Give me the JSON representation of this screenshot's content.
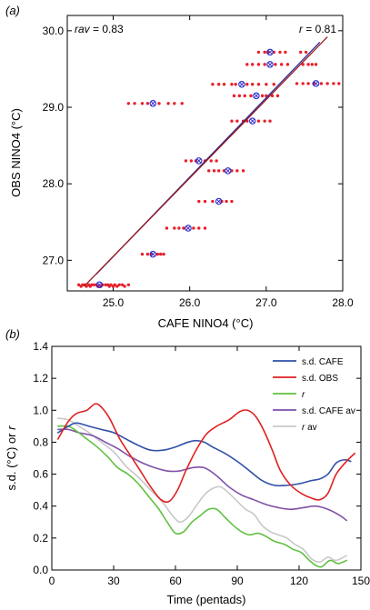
{
  "chart_data": [
    {
      "type": "scatter",
      "panel_label": "(a)",
      "xlabel": "CAFE NINO4 (°C)",
      "ylabel": "OBS NINO4 (°C)",
      "xlim": [
        24.4,
        28.0
      ],
      "ylim": [
        26.6,
        30.2
      ],
      "xticks": [
        25.0,
        26.0,
        27.0,
        28.0
      ],
      "yticks": [
        27.0,
        28.0,
        29.0,
        30.0
      ],
      "tick_labels_x": [
        "25.0",
        "26.0",
        "27.0",
        "28.0"
      ],
      "tick_labels_y": [
        "27.0",
        "28.0",
        "29.0",
        "30.0"
      ],
      "annotations": {
        "rav_var": "rav",
        "rav_value": " = 0.83",
        "r_var": "r",
        "r_value": " = 0.81"
      },
      "colors": {
        "members": "#e8202a",
        "means": "#2a2acd",
        "fit_mean": "#2a2a9a",
        "fit_all": "#9a1a1a"
      },
      "fit_mean_line": {
        "x": [
          24.78,
          27.7
        ],
        "y": [
          26.82,
          29.85
        ]
      },
      "fit_all_line": {
        "x": [
          24.62,
          27.8
        ],
        "y": [
          26.66,
          29.92
        ]
      },
      "ensemble_means": [
        {
          "x": 24.82,
          "y": 26.68
        },
        {
          "x": 25.52,
          "y": 27.08
        },
        {
          "x": 25.98,
          "y": 27.42
        },
        {
          "x": 26.38,
          "y": 27.77
        },
        {
          "x": 26.5,
          "y": 28.17
        },
        {
          "x": 26.12,
          "y": 28.3
        },
        {
          "x": 25.52,
          "y": 29.05
        },
        {
          "x": 26.82,
          "y": 28.82
        },
        {
          "x": 26.87,
          "y": 29.15
        },
        {
          "x": 26.68,
          "y": 29.3
        },
        {
          "x": 27.05,
          "y": 29.56
        },
        {
          "x": 27.05,
          "y": 29.72
        },
        {
          "x": 27.65,
          "y": 29.31
        }
      ],
      "member_rows": [
        {
          "y": 26.68,
          "x": [
            24.55,
            24.6,
            24.63,
            24.68,
            24.72,
            24.75,
            24.78,
            24.86,
            24.9,
            24.93,
            24.97,
            25.02,
            25.08,
            25.12,
            25.2
          ]
        },
        {
          "y": 26.66,
          "x": [
            24.58,
            24.65,
            24.7,
            24.8,
            24.84,
            24.95,
            25.0,
            25.05,
            25.15
          ]
        },
        {
          "y": 27.08,
          "x": [
            25.38,
            25.45,
            25.5,
            25.58,
            25.62,
            25.66
          ]
        },
        {
          "y": 27.42,
          "x": [
            25.7,
            25.8,
            25.86,
            25.92,
            26.05,
            26.12,
            26.2
          ]
        },
        {
          "y": 27.77,
          "x": [
            26.12,
            26.2,
            26.3,
            26.42,
            26.48,
            26.55
          ]
        },
        {
          "y": 28.17,
          "x": [
            26.25,
            26.32,
            26.38,
            26.45,
            26.55,
            26.62,
            26.7
          ]
        },
        {
          "y": 28.3,
          "x": [
            25.95,
            26.02,
            26.08,
            26.2,
            26.28,
            26.35
          ]
        },
        {
          "y": 29.05,
          "x": [
            25.2,
            25.28,
            25.38,
            25.45,
            25.6,
            25.72,
            25.8,
            25.9
          ]
        },
        {
          "y": 28.82,
          "x": [
            26.55,
            26.62,
            26.7,
            26.75,
            26.9,
            26.98,
            27.05
          ]
        },
        {
          "y": 29.15,
          "x": [
            26.58,
            26.65,
            26.72,
            26.8,
            26.95,
            27.0,
            27.08,
            27.15
          ]
        },
        {
          "y": 29.3,
          "x": [
            26.3,
            26.38,
            26.45,
            26.55,
            26.6,
            26.75,
            26.82,
            26.9,
            27.0,
            27.1
          ]
        },
        {
          "y": 29.56,
          "x": [
            26.75,
            26.82,
            26.9,
            26.98,
            27.12,
            27.2,
            27.28,
            27.48,
            27.55,
            27.6,
            27.65
          ]
        },
        {
          "y": 29.72,
          "x": [
            26.9,
            26.98,
            27.02,
            27.1,
            27.18,
            27.25,
            27.45,
            27.52
          ]
        },
        {
          "y": 29.31,
          "x": [
            27.4,
            27.48,
            27.55,
            27.62,
            27.72,
            27.8,
            27.88,
            27.95
          ]
        }
      ]
    },
    {
      "type": "line",
      "panel_label": "(b)",
      "xlabel": "Time (pentads)",
      "ylabel_prefix": "s.d. (°C) or ",
      "ylabel_var": "r",
      "xlim": [
        0,
        150
      ],
      "ylim": [
        0,
        1.4
      ],
      "xticks": [
        0,
        30,
        60,
        90,
        120,
        150
      ],
      "yticks": [
        0,
        0.2,
        0.4,
        0.6,
        0.8,
        1.0,
        1.2,
        1.4
      ],
      "tick_labels_x": [
        "0",
        "30",
        "60",
        "90",
        "120",
        "150"
      ],
      "tick_labels_y": [
        "0.0",
        "0.2",
        "0.4",
        "0.6",
        "0.8",
        "1.0",
        "1.2",
        "1.4"
      ],
      "legend_position": "top-right",
      "series": [
        {
          "name": "s.d. CAFE",
          "color": "#3050a8",
          "points": [
            [
              3,
              0.86
            ],
            [
              8,
              0.9
            ],
            [
              12,
              0.92
            ],
            [
              18,
              0.9
            ],
            [
              24,
              0.88
            ],
            [
              30,
              0.86
            ],
            [
              36,
              0.82
            ],
            [
              42,
              0.78
            ],
            [
              48,
              0.75
            ],
            [
              54,
              0.75
            ],
            [
              60,
              0.77
            ],
            [
              66,
              0.8
            ],
            [
              70,
              0.81
            ],
            [
              74,
              0.8
            ],
            [
              78,
              0.77
            ],
            [
              84,
              0.73
            ],
            [
              90,
              0.68
            ],
            [
              96,
              0.62
            ],
            [
              102,
              0.56
            ],
            [
              108,
              0.53
            ],
            [
              114,
              0.53
            ],
            [
              120,
              0.54
            ],
            [
              126,
              0.56
            ],
            [
              130,
              0.57
            ],
            [
              134,
              0.6
            ],
            [
              138,
              0.67
            ],
            [
              142,
              0.69
            ],
            [
              145,
              0.68
            ]
          ]
        },
        {
          "name": "s.d. OBS",
          "color": "#e02020",
          "points": [
            [
              3,
              0.82
            ],
            [
              8,
              0.93
            ],
            [
              12,
              0.98
            ],
            [
              17,
              1.0
            ],
            [
              21,
              1.04
            ],
            [
              24,
              1.02
            ],
            [
              28,
              0.95
            ],
            [
              33,
              0.82
            ],
            [
              38,
              0.72
            ],
            [
              43,
              0.62
            ],
            [
              48,
              0.52
            ],
            [
              53,
              0.44
            ],
            [
              57,
              0.43
            ],
            [
              61,
              0.5
            ],
            [
              65,
              0.62
            ],
            [
              70,
              0.75
            ],
            [
              75,
              0.85
            ],
            [
              80,
              0.9
            ],
            [
              86,
              0.94
            ],
            [
              91,
              0.99
            ],
            [
              95,
              1.0
            ],
            [
              99,
              0.96
            ],
            [
              103,
              0.87
            ],
            [
              107,
              0.75
            ],
            [
              111,
              0.62
            ],
            [
              116,
              0.53
            ],
            [
              121,
              0.48
            ],
            [
              126,
              0.45
            ],
            [
              130,
              0.44
            ],
            [
              134,
              0.48
            ],
            [
              138,
              0.6
            ],
            [
              143,
              0.68
            ],
            [
              147,
              0.73
            ]
          ]
        },
        {
          "name": "r",
          "name_italic": true,
          "color": "#60c040",
          "points": [
            [
              3,
              0.9
            ],
            [
              8,
              0.9
            ],
            [
              12,
              0.87
            ],
            [
              17,
              0.82
            ],
            [
              22,
              0.77
            ],
            [
              27,
              0.71
            ],
            [
              32,
              0.64
            ],
            [
              37,
              0.6
            ],
            [
              42,
              0.54
            ],
            [
              47,
              0.46
            ],
            [
              52,
              0.38
            ],
            [
              56,
              0.3
            ],
            [
              60,
              0.23
            ],
            [
              64,
              0.24
            ],
            [
              68,
              0.3
            ],
            [
              72,
              0.34
            ],
            [
              76,
              0.38
            ],
            [
              80,
              0.38
            ],
            [
              84,
              0.33
            ],
            [
              88,
              0.28
            ],
            [
              92,
              0.24
            ],
            [
              96,
              0.22
            ],
            [
              100,
              0.23
            ],
            [
              104,
              0.21
            ],
            [
              108,
              0.18
            ],
            [
              113,
              0.16
            ],
            [
              117,
              0.13
            ],
            [
              121,
              0.11
            ],
            [
              125,
              0.06
            ],
            [
              128,
              0.03
            ],
            [
              131,
              0.02
            ],
            [
              135,
              0.06
            ],
            [
              139,
              0.04
            ],
            [
              143,
              0.06
            ]
          ]
        },
        {
          "name": "s.d. CAFE av",
          "color": "#8050a8",
          "points": [
            [
              3,
              0.88
            ],
            [
              8,
              0.88
            ],
            [
              13,
              0.86
            ],
            [
              20,
              0.84
            ],
            [
              26,
              0.8
            ],
            [
              32,
              0.76
            ],
            [
              38,
              0.71
            ],
            [
              44,
              0.67
            ],
            [
              50,
              0.64
            ],
            [
              56,
              0.62
            ],
            [
              62,
              0.62
            ],
            [
              68,
              0.64
            ],
            [
              74,
              0.64
            ],
            [
              80,
              0.59
            ],
            [
              86,
              0.52
            ],
            [
              92,
              0.47
            ],
            [
              98,
              0.44
            ],
            [
              104,
              0.41
            ],
            [
              110,
              0.39
            ],
            [
              116,
              0.38
            ],
            [
              122,
              0.39
            ],
            [
              128,
              0.4
            ],
            [
              134,
              0.38
            ],
            [
              140,
              0.34
            ],
            [
              143,
              0.31
            ]
          ]
        },
        {
          "name": "r av",
          "name_italic": true,
          "color": "#c8c8c8",
          "points": [
            [
              3,
              0.95
            ],
            [
              8,
              0.94
            ],
            [
              13,
              0.9
            ],
            [
              18,
              0.86
            ],
            [
              24,
              0.8
            ],
            [
              30,
              0.74
            ],
            [
              36,
              0.65
            ],
            [
              42,
              0.58
            ],
            [
              48,
              0.5
            ],
            [
              54,
              0.42
            ],
            [
              58,
              0.35
            ],
            [
              62,
              0.3
            ],
            [
              66,
              0.33
            ],
            [
              70,
              0.4
            ],
            [
              74,
              0.47
            ],
            [
              78,
              0.51
            ],
            [
              82,
              0.52
            ],
            [
              86,
              0.48
            ],
            [
              90,
              0.43
            ],
            [
              94,
              0.38
            ],
            [
              98,
              0.35
            ],
            [
              102,
              0.28
            ],
            [
              106,
              0.24
            ],
            [
              110,
              0.22
            ],
            [
              114,
              0.2
            ],
            [
              118,
              0.16
            ],
            [
              122,
              0.13
            ],
            [
              126,
              0.07
            ],
            [
              130,
              0.05
            ],
            [
              134,
              0.08
            ],
            [
              138,
              0.06
            ],
            [
              143,
              0.09
            ]
          ]
        }
      ]
    }
  ]
}
